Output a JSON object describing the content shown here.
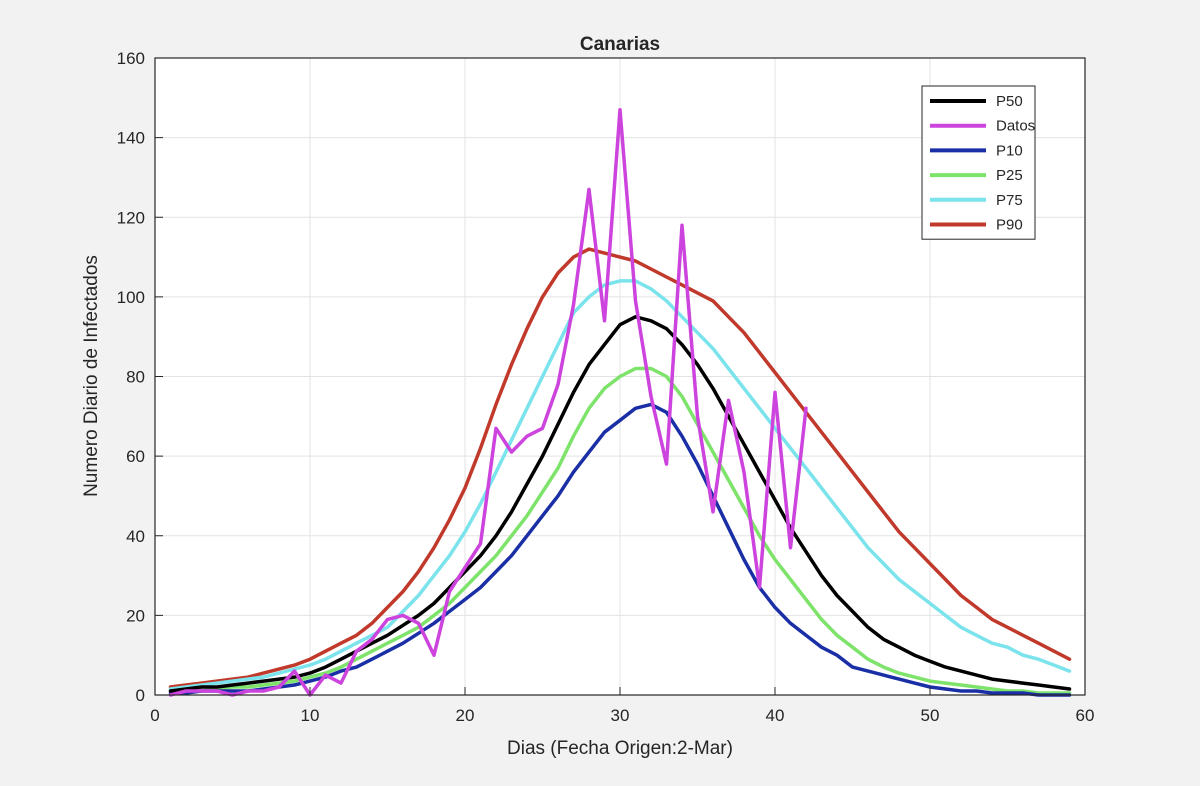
{
  "chart_data": {
    "type": "line",
    "title": "Canarias",
    "xlabel": "Dias (Fecha Origen:2-Mar)",
    "ylabel": "Numero Diario de Infectados",
    "xlim": [
      0,
      60
    ],
    "ylim": [
      0,
      160
    ],
    "xticks": [
      0,
      10,
      20,
      30,
      40,
      50,
      60
    ],
    "yticks": [
      0,
      20,
      40,
      60,
      80,
      100,
      120,
      140,
      160
    ],
    "grid": true,
    "legend_position": "top-right",
    "series": [
      {
        "name": "P50",
        "color": "#000000",
        "x": [
          1,
          2,
          3,
          4,
          5,
          6,
          7,
          8,
          9,
          10,
          11,
          12,
          13,
          14,
          15,
          16,
          17,
          18,
          19,
          20,
          21,
          22,
          23,
          24,
          25,
          26,
          27,
          28,
          29,
          30,
          31,
          32,
          33,
          34,
          35,
          36,
          37,
          38,
          39,
          40,
          41,
          42,
          43,
          44,
          45,
          46,
          47,
          48,
          49,
          50,
          51,
          52,
          53,
          54,
          55,
          56,
          57,
          58,
          59
        ],
        "y": [
          1,
          1.5,
          2,
          2,
          2.5,
          3,
          3.5,
          4,
          4.5,
          5.5,
          7,
          9,
          11,
          13,
          15,
          17.5,
          20,
          23,
          27,
          31,
          35,
          40,
          46,
          53,
          60,
          68,
          76,
          83,
          88,
          93,
          95,
          94,
          92,
          88,
          83,
          77,
          70,
          63,
          56,
          49,
          42,
          36,
          30,
          25,
          21,
          17,
          14,
          12,
          10,
          8.5,
          7,
          6,
          5,
          4,
          3.5,
          3,
          2.5,
          2,
          1.5
        ]
      },
      {
        "name": "Datos",
        "color": "#cc44dd",
        "x": [
          1,
          2,
          3,
          4,
          5,
          6,
          7,
          8,
          9,
          10,
          11,
          12,
          13,
          14,
          15,
          16,
          17,
          18,
          19,
          20,
          21,
          22,
          23,
          24,
          25,
          26,
          27,
          28,
          29,
          30,
          31,
          32,
          33,
          34,
          35,
          36,
          37,
          38,
          39,
          40,
          41,
          42
        ],
        "y": [
          0,
          1,
          1,
          1,
          0,
          1,
          1,
          2,
          6,
          0,
          5,
          3,
          11,
          14,
          19,
          20,
          18,
          10,
          26,
          32,
          38,
          67,
          61,
          65,
          67,
          78,
          98,
          127,
          94,
          147,
          99,
          75,
          58,
          118,
          70,
          46,
          74,
          56,
          27,
          76,
          37,
          72
        ]
      },
      {
        "name": "P10",
        "color": "#1a2fa6",
        "x": [
          1,
          2,
          3,
          4,
          5,
          6,
          7,
          8,
          9,
          10,
          11,
          12,
          13,
          14,
          15,
          16,
          17,
          18,
          19,
          20,
          21,
          22,
          23,
          24,
          25,
          26,
          27,
          28,
          29,
          30,
          31,
          32,
          33,
          34,
          35,
          36,
          37,
          38,
          39,
          40,
          41,
          42,
          43,
          44,
          45,
          46,
          47,
          48,
          49,
          50,
          51,
          52,
          53,
          54,
          55,
          56,
          57,
          58,
          59
        ],
        "y": [
          0.5,
          0.5,
          1,
          1,
          1,
          1,
          1.5,
          2,
          2.5,
          3.5,
          4.5,
          6,
          7,
          9,
          11,
          13,
          15.5,
          18,
          21,
          24,
          27,
          31,
          35,
          40,
          45,
          50,
          56,
          61,
          66,
          69,
          72,
          73,
          71,
          65,
          58,
          50,
          42,
          34,
          27,
          22,
          18,
          15,
          12,
          10,
          7,
          6,
          5,
          4,
          3,
          2,
          1.5,
          1,
          1,
          0.5,
          0.5,
          0.5,
          0,
          0,
          0
        ]
      },
      {
        "name": "P25",
        "color": "#7ee36a",
        "x": [
          1,
          2,
          3,
          4,
          5,
          6,
          7,
          8,
          9,
          10,
          11,
          12,
          13,
          14,
          15,
          16,
          17,
          18,
          19,
          20,
          21,
          22,
          23,
          24,
          25,
          26,
          27,
          28,
          29,
          30,
          31,
          32,
          33,
          34,
          35,
          36,
          37,
          38,
          39,
          40,
          41,
          42,
          43,
          44,
          45,
          46,
          47,
          48,
          49,
          50,
          51,
          52,
          53,
          54,
          55,
          56,
          57,
          58,
          59
        ],
        "y": [
          1,
          1,
          1,
          1.5,
          2,
          2,
          2.5,
          3,
          3.5,
          4.5,
          5.5,
          7,
          9,
          11,
          13,
          15,
          17,
          20,
          23,
          27,
          31,
          35,
          40,
          45,
          51,
          57,
          65,
          72,
          77,
          80,
          82,
          82,
          80,
          75,
          68,
          61,
          54,
          47,
          40,
          34,
          29,
          24,
          19,
          15,
          12,
          9,
          7,
          5.5,
          4.5,
          3.5,
          3,
          2.5,
          2,
          1.5,
          1,
          1,
          0.5,
          0.5,
          0.5
        ]
      },
      {
        "name": "P75",
        "color": "#7ae3ec",
        "x": [
          1,
          2,
          3,
          4,
          5,
          6,
          7,
          8,
          9,
          10,
          11,
          12,
          13,
          14,
          15,
          16,
          17,
          18,
          19,
          20,
          21,
          22,
          23,
          24,
          25,
          26,
          27,
          28,
          29,
          30,
          31,
          32,
          33,
          34,
          35,
          36,
          37,
          38,
          39,
          40,
          41,
          42,
          43,
          44,
          45,
          46,
          47,
          48,
          49,
          50,
          51,
          52,
          53,
          54,
          55,
          56,
          57,
          58,
          59
        ],
        "y": [
          1.5,
          2,
          2.5,
          3,
          3.5,
          4,
          4.5,
          5.5,
          6.5,
          7.5,
          9,
          11,
          13,
          15,
          17,
          21,
          25,
          30,
          35,
          41,
          48,
          56,
          64,
          72,
          80,
          88,
          96,
          100,
          103,
          104,
          104,
          102,
          99,
          95,
          91,
          87,
          82,
          77,
          72,
          67,
          62,
          57,
          52,
          47,
          42,
          37,
          33,
          29,
          26,
          23,
          20,
          17,
          15,
          13,
          12,
          10,
          9,
          7.5,
          6
        ]
      },
      {
        "name": "P90",
        "color": "#c0392b",
        "x": [
          1,
          2,
          3,
          4,
          5,
          6,
          7,
          8,
          9,
          10,
          11,
          12,
          13,
          14,
          15,
          16,
          17,
          18,
          19,
          20,
          21,
          22,
          23,
          24,
          25,
          26,
          27,
          28,
          29,
          30,
          31,
          32,
          33,
          34,
          35,
          36,
          37,
          38,
          39,
          40,
          41,
          42,
          43,
          44,
          45,
          46,
          47,
          48,
          49,
          50,
          51,
          52,
          53,
          54,
          55,
          56,
          57,
          58,
          59
        ],
        "y": [
          2,
          2.5,
          3,
          3.5,
          4,
          4.5,
          5.5,
          6.5,
          7.5,
          9,
          11,
          13,
          15,
          18,
          22,
          26,
          31,
          37,
          44,
          52,
          62,
          73,
          83,
          92,
          100,
          106,
          110,
          112,
          111,
          110,
          109,
          107,
          105,
          103,
          101,
          99,
          95,
          91,
          86,
          81,
          76,
          71,
          66,
          61,
          56,
          51,
          46,
          41,
          37,
          33,
          29,
          25,
          22,
          19,
          17,
          15,
          13,
          11,
          9
        ]
      }
    ]
  }
}
